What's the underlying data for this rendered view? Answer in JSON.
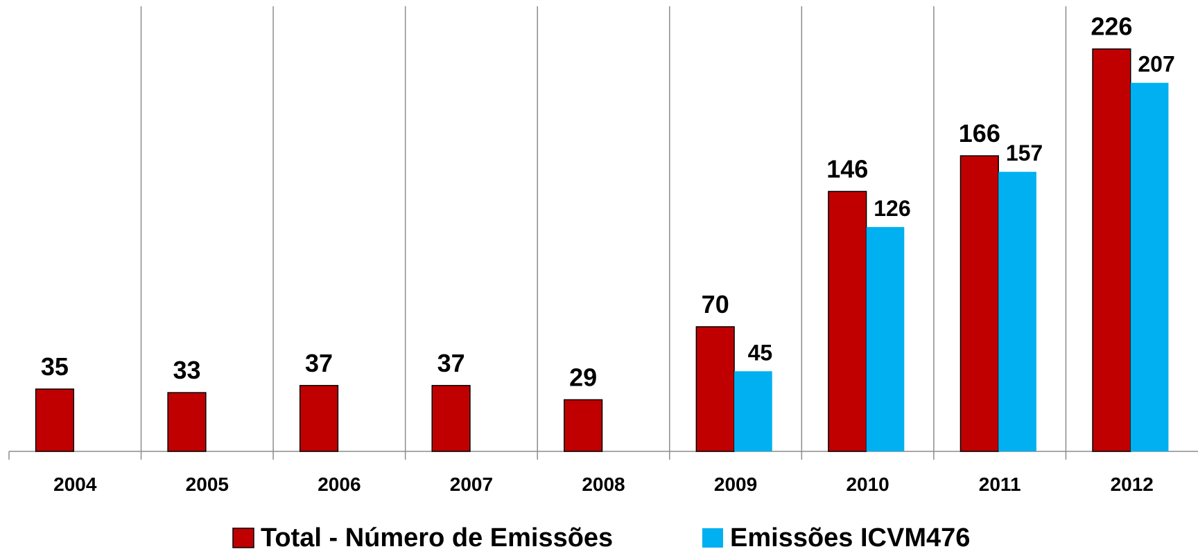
{
  "chart_data": {
    "type": "bar",
    "categories": [
      "2004",
      "2005",
      "2006",
      "2007",
      "2008",
      "2009",
      "2010",
      "2011",
      "2012"
    ],
    "series": [
      {
        "name": "Total - Número de Emissões",
        "color": "#c00000",
        "values": [
          35,
          33,
          37,
          37,
          29,
          70,
          146,
          166,
          226
        ]
      },
      {
        "name": "Emissões ICVM476",
        "color": "#00b0f0",
        "values": [
          null,
          null,
          null,
          null,
          null,
          45,
          126,
          157,
          207
        ]
      }
    ],
    "ylim": [
      0,
      250
    ],
    "grid": false,
    "legend": "bottom"
  }
}
